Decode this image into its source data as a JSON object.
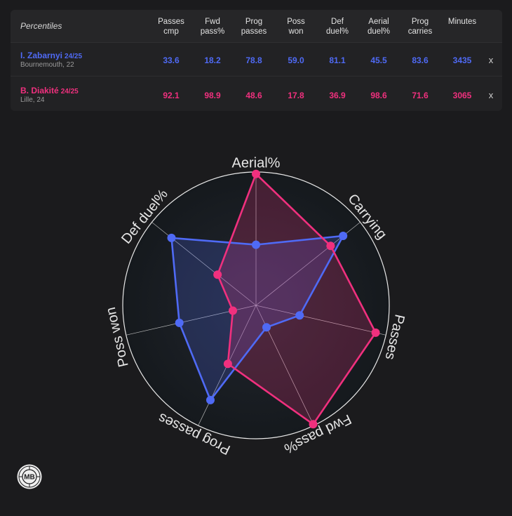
{
  "table": {
    "header_label": "Percentiles",
    "columns": [
      "Passes\ncmp",
      "Fwd\npass%",
      "Prog\npasses",
      "Poss\nwon",
      "Def\nduel%",
      "Aerial\nduel%",
      "Prog\ncarries",
      "Minutes"
    ],
    "remove_label": "x",
    "players": [
      {
        "name": "I. Zabarnyi",
        "season": "24/25",
        "club": "Bournemouth, 22",
        "color": "#4f6af5",
        "values": [
          "33.6",
          "18.2",
          "78.8",
          "59.0",
          "81.1",
          "45.5",
          "83.6",
          "3435"
        ]
      },
      {
        "name": "B. Diakité",
        "season": "24/25",
        "club": "Lille, 24",
        "color": "#f0307e",
        "values": [
          "92.1",
          "98.9",
          "48.6",
          "17.8",
          "36.9",
          "98.6",
          "71.6",
          "3065"
        ]
      }
    ]
  },
  "chart_data": {
    "type": "radar",
    "axes": [
      "Aerial%",
      "Carrying",
      "Passes",
      "Fwd pass%",
      "Prog passes",
      "Poss won",
      "Def duel%"
    ],
    "range": [
      0,
      100
    ],
    "series": [
      {
        "name": "I. Zabarnyi",
        "color": "#4f6af5",
        "values": [
          45.5,
          83.6,
          33.6,
          18.2,
          78.8,
          59.0,
          81.1
        ]
      },
      {
        "name": "B. Diakité",
        "color": "#f0307e",
        "values": [
          98.6,
          71.6,
          92.1,
          98.9,
          48.6,
          17.8,
          36.9
        ]
      }
    ]
  },
  "logo": {
    "text": "MB"
  }
}
